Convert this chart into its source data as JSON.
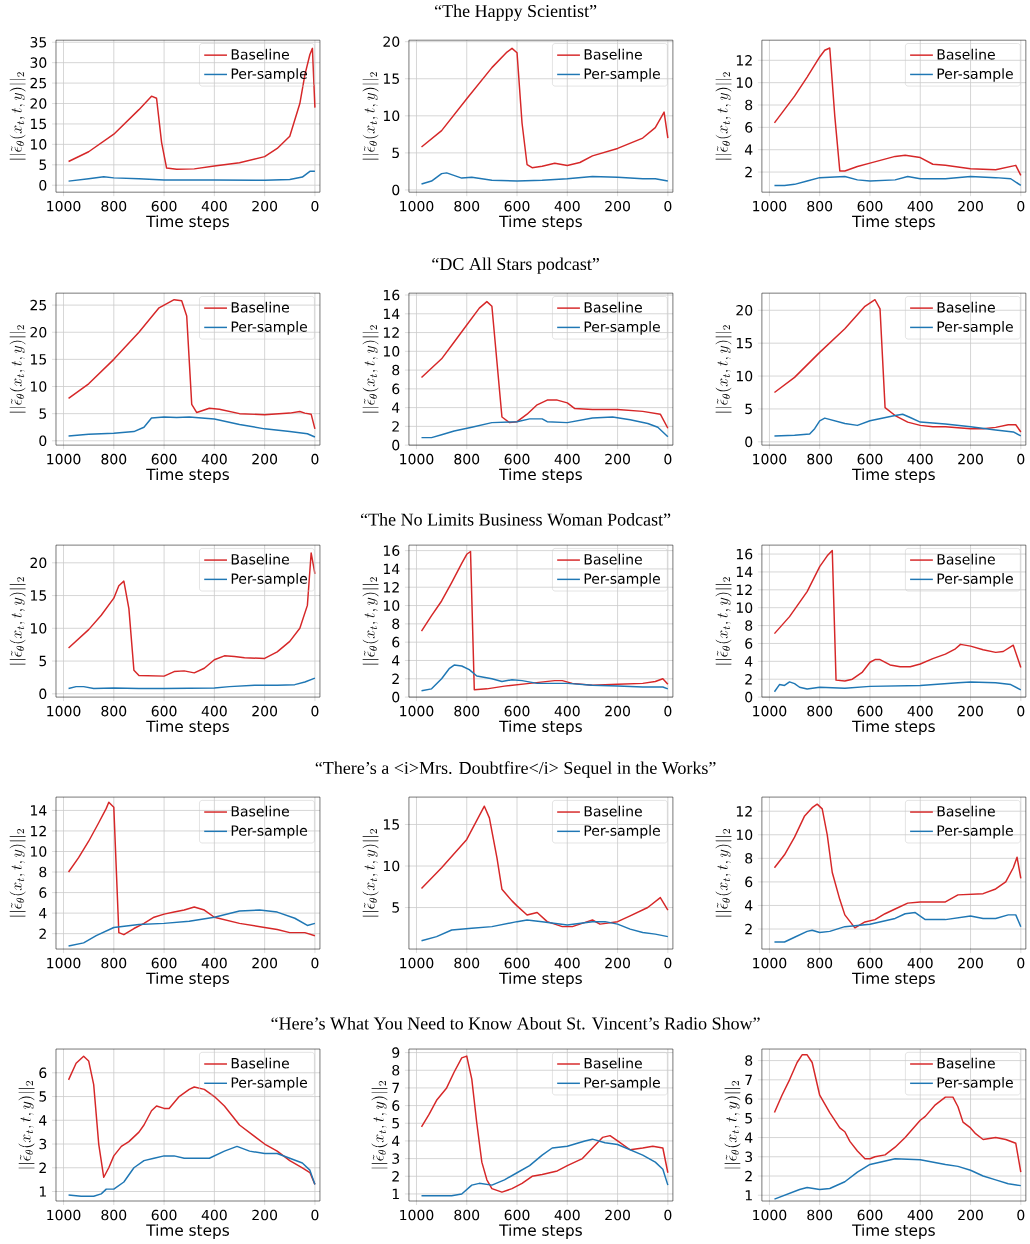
{
  "chart_data": [
    {
      "type": "line",
      "xlabel": "Time steps",
      "ylabel": "||\\tilde{\\epsilon}_\\theta(x_t, t, y)||_2",
      "xlim": [
        1030,
        -20
      ],
      "xticks": [
        1000,
        800,
        600,
        400,
        200,
        0
      ],
      "ylim": [
        -1.7,
        35.5
      ],
      "yticks": [
        0,
        5,
        10,
        15,
        20,
        25,
        30,
        35
      ],
      "grid": true,
      "legend": "top right",
      "series": [
        {
          "name": "Baseline",
          "color": "#d62728",
          "x": [
            980,
            900,
            800,
            700,
            650,
            630,
            610,
            590,
            550,
            480,
            400,
            300,
            200,
            150,
            100,
            60,
            40,
            20,
            10,
            0
          ],
          "values": [
            5.8,
            8.2,
            12.5,
            18.5,
            21.8,
            21.3,
            10.5,
            4.2,
            3.9,
            4.0,
            4.7,
            5.5,
            7.0,
            9,
            12,
            20,
            27,
            32,
            33.5,
            19
          ]
        },
        {
          "name": "Per-sample",
          "color": "#1f77b4",
          "x": [
            980,
            900,
            840,
            800,
            700,
            600,
            400,
            200,
            100,
            50,
            20,
            0
          ],
          "values": [
            1,
            1.6,
            2.1,
            1.8,
            1.6,
            1.3,
            1.3,
            1.2,
            1.4,
            2,
            3.4,
            3.4
          ]
        }
      ]
    },
    {
      "type": "line",
      "title": "“The Happy Scientist”",
      "xlabel": "Time steps",
      "ylabel": "||\\tilde{\\epsilon}_\\theta(x_t, t, y)||_2",
      "xlim": [
        1030,
        -20
      ],
      "xticks": [
        1000,
        800,
        600,
        400,
        200,
        0
      ],
      "ylim": [
        -0.3,
        20.2
      ],
      "yticks": [
        0,
        5,
        10,
        15,
        20
      ],
      "grid": true,
      "legend": "top right",
      "series": [
        {
          "name": "Baseline",
          "color": "#d62728",
          "x": [
            980,
            900,
            800,
            700,
            640,
            620,
            600,
            580,
            560,
            540,
            500,
            450,
            400,
            350,
            300,
            200,
            100,
            50,
            15,
            0
          ],
          "values": [
            5.8,
            8,
            12.3,
            16.5,
            18.6,
            19.1,
            18.5,
            9,
            3.4,
            3,
            3.2,
            3.6,
            3.3,
            3.7,
            4.6,
            5.6,
            7,
            8.4,
            10.5,
            7
          ]
        },
        {
          "name": "Per-sample",
          "color": "#1f77b4",
          "x": [
            980,
            940,
            900,
            880,
            820,
            780,
            700,
            600,
            500,
            400,
            300,
            200,
            100,
            50,
            0
          ],
          "values": [
            0.8,
            1.2,
            2.2,
            2.3,
            1.6,
            1.7,
            1.3,
            1.2,
            1.3,
            1.5,
            1.8,
            1.7,
            1.5,
            1.5,
            1.2
          ]
        }
      ]
    },
    {
      "type": "line",
      "xlabel": "Time steps",
      "ylabel": "||\\tilde{\\epsilon}_\\theta(x_t, t, y)||_2",
      "xlim": [
        1030,
        -20
      ],
      "xticks": [
        1000,
        800,
        600,
        400,
        200,
        0
      ],
      "ylim": [
        0.2,
        13.8
      ],
      "yticks": [
        2,
        4,
        6,
        8,
        10,
        12
      ],
      "grid": true,
      "legend": "top right",
      "series": [
        {
          "name": "Baseline",
          "color": "#d62728",
          "x": [
            980,
            950,
            900,
            850,
            800,
            780,
            760,
            740,
            720,
            700,
            650,
            600,
            500,
            460,
            400,
            350,
            300,
            200,
            100,
            20,
            0
          ],
          "values": [
            6.4,
            7.3,
            8.8,
            10.5,
            12.3,
            12.9,
            13.1,
            7,
            2.1,
            2.1,
            2.5,
            2.8,
            3.4,
            3.5,
            3.3,
            2.7,
            2.6,
            2.3,
            2.2,
            2.6,
            1.7
          ]
        },
        {
          "name": "Per-sample",
          "color": "#1f77b4",
          "x": [
            980,
            940,
            900,
            850,
            800,
            700,
            650,
            600,
            500,
            450,
            400,
            300,
            200,
            100,
            40,
            0
          ],
          "values": [
            0.8,
            0.8,
            0.9,
            1.2,
            1.5,
            1.6,
            1.3,
            1.2,
            1.3,
            1.6,
            1.4,
            1.4,
            1.6,
            1.5,
            1.4,
            0.8
          ]
        }
      ]
    },
    {
      "type": "line",
      "xlabel": "Time steps",
      "ylabel": "||\\tilde{\\epsilon}_\\theta(x_t, t, y)||_2",
      "xlim": [
        1030,
        -20
      ],
      "xticks": [
        1000,
        800,
        600,
        400,
        200,
        0
      ],
      "ylim": [
        -0.8,
        27.2
      ],
      "yticks": [
        0,
        5,
        10,
        15,
        20,
        25
      ],
      "grid": true,
      "legend": "top right",
      "series": [
        {
          "name": "Baseline",
          "color": "#d62728",
          "x": [
            980,
            900,
            800,
            700,
            620,
            560,
            530,
            510,
            490,
            470,
            420,
            380,
            300,
            200,
            100,
            60,
            40,
            15,
            0
          ],
          "values": [
            7.8,
            10.5,
            15,
            20,
            24.5,
            26,
            25.8,
            23,
            6.7,
            5.2,
            6,
            5.8,
            5,
            4.8,
            5.1,
            5.4,
            5.1,
            4.9,
            2.2
          ]
        },
        {
          "name": "Per-sample",
          "color": "#1f77b4",
          "x": [
            980,
            900,
            800,
            720,
            680,
            650,
            600,
            550,
            500,
            400,
            300,
            200,
            100,
            30,
            0
          ],
          "values": [
            0.9,
            1.2,
            1.4,
            1.7,
            2.5,
            4.2,
            4.4,
            4.3,
            4.4,
            4,
            3,
            2.2,
            1.7,
            1.3,
            0.7
          ]
        }
      ]
    },
    {
      "type": "line",
      "title": "“DC All Stars podcast”",
      "xlabel": "Time steps",
      "ylabel": "||\\tilde{\\epsilon}_\\theta(x_t, t, y)||_2",
      "xlim": [
        1030,
        -20
      ],
      "xticks": [
        1000,
        800,
        600,
        400,
        200,
        0
      ],
      "ylim": [
        0,
        16.2
      ],
      "yticks": [
        0,
        2,
        4,
        6,
        8,
        10,
        12,
        14,
        16
      ],
      "grid": true,
      "legend": "top right",
      "series": [
        {
          "name": "Baseline",
          "color": "#d62728",
          "x": [
            980,
            900,
            850,
            800,
            750,
            720,
            700,
            660,
            630,
            600,
            560,
            520,
            480,
            440,
            400,
            370,
            300,
            200,
            100,
            30,
            0
          ],
          "values": [
            7.2,
            9.2,
            11,
            12.8,
            14.6,
            15.3,
            14.8,
            3,
            2.4,
            2.5,
            3.3,
            4.3,
            4.8,
            4.8,
            4.5,
            3.9,
            3.8,
            3.8,
            3.6,
            3.3,
            1.8
          ]
        },
        {
          "name": "Per-sample",
          "color": "#1f77b4",
          "x": [
            980,
            940,
            900,
            850,
            780,
            700,
            600,
            550,
            500,
            480,
            400,
            300,
            220,
            150,
            80,
            40,
            0
          ],
          "values": [
            0.8,
            0.8,
            1.1,
            1.5,
            1.9,
            2.4,
            2.5,
            2.8,
            2.8,
            2.5,
            2.4,
            2.9,
            3,
            2.7,
            2.3,
            1.9,
            0.9
          ]
        }
      ]
    },
    {
      "type": "line",
      "xlabel": "Time steps",
      "ylabel": "||\\tilde{\\epsilon}_\\theta(x_t, t, y)||_2",
      "xlim": [
        1030,
        -20
      ],
      "xticks": [
        1000,
        800,
        600,
        400,
        200,
        0
      ],
      "ylim": [
        -0.5,
        22.6
      ],
      "yticks": [
        0,
        5,
        10,
        15,
        20
      ],
      "grid": true,
      "legend": "top right",
      "series": [
        {
          "name": "Baseline",
          "color": "#d62728",
          "x": [
            980,
            900,
            800,
            700,
            620,
            580,
            560,
            540,
            500,
            450,
            400,
            350,
            300,
            200,
            150,
            100,
            50,
            20,
            0
          ],
          "values": [
            7.5,
            9.8,
            13.6,
            17.2,
            20.6,
            21.6,
            20.2,
            5.2,
            4,
            3,
            2.5,
            2.3,
            2.3,
            2,
            2,
            2.2,
            2.6,
            2.6,
            1.5
          ]
        },
        {
          "name": "Per-sample",
          "color": "#1f77b4",
          "x": [
            980,
            900,
            840,
            820,
            800,
            780,
            700,
            650,
            600,
            500,
            470,
            440,
            400,
            300,
            200,
            100,
            30,
            0
          ],
          "values": [
            0.9,
            1,
            1.2,
            2,
            3.2,
            3.6,
            2.8,
            2.5,
            3.2,
            4,
            4.2,
            3.7,
            3,
            2.7,
            2.3,
            1.8,
            1.5,
            0.9
          ]
        }
      ]
    },
    {
      "type": "line",
      "xlabel": "Time steps",
      "ylabel": "||\\tilde{\\epsilon}_\\theta(x_t, t, y)||_2",
      "xlim": [
        1030,
        -20
      ],
      "xticks": [
        1000,
        800,
        600,
        400,
        200,
        0
      ],
      "ylim": [
        -0.5,
        22.7
      ],
      "yticks": [
        0,
        5,
        10,
        15,
        20
      ],
      "grid": true,
      "legend": "top right",
      "series": [
        {
          "name": "Baseline",
          "color": "#d62728",
          "x": [
            980,
            900,
            850,
            800,
            780,
            760,
            740,
            720,
            700,
            600,
            560,
            520,
            480,
            440,
            400,
            360,
            320,
            280,
            200,
            150,
            100,
            60,
            30,
            15,
            0
          ],
          "values": [
            7,
            9.8,
            12,
            14.6,
            16.5,
            17.2,
            13,
            3.6,
            2.8,
            2.7,
            3.4,
            3.5,
            3.2,
            3.9,
            5.2,
            5.8,
            5.7,
            5.5,
            5.4,
            6.4,
            8,
            10,
            13.5,
            21.5,
            18.3
          ]
        },
        {
          "name": "Per-sample",
          "color": "#1f77b4",
          "x": [
            980,
            950,
            920,
            880,
            800,
            700,
            600,
            400,
            340,
            240,
            150,
            80,
            40,
            0
          ],
          "values": [
            0.8,
            1.1,
            1.1,
            0.8,
            0.9,
            0.8,
            0.8,
            0.9,
            1.1,
            1.3,
            1.3,
            1.4,
            1.8,
            2.4
          ]
        }
      ]
    },
    {
      "type": "line",
      "title": "“The No Limits Business Woman Podcast”",
      "xlabel": "Time steps",
      "ylabel": "||\\tilde{\\epsilon}_\\theta(x_t, t, y)||_2",
      "xlim": [
        1030,
        -20
      ],
      "xticks": [
        1000,
        800,
        600,
        400,
        200,
        0
      ],
      "ylim": [
        0,
        16.6
      ],
      "yticks": [
        0,
        2,
        4,
        6,
        8,
        10,
        12,
        14,
        16
      ],
      "grid": true,
      "legend": "top right",
      "series": [
        {
          "name": "Baseline",
          "color": "#d62728",
          "x": [
            980,
            940,
            900,
            860,
            820,
            800,
            785,
            770,
            720,
            650,
            550,
            450,
            420,
            380,
            300,
            200,
            100,
            50,
            20,
            0
          ],
          "values": [
            7.2,
            8.9,
            10.5,
            12.5,
            14.6,
            15.6,
            15.9,
            0.8,
            0.9,
            1.2,
            1.5,
            1.8,
            1.8,
            1.5,
            1.3,
            1.4,
            1.5,
            1.7,
            2,
            1.4
          ]
        },
        {
          "name": "Per-sample",
          "color": "#1f77b4",
          "x": [
            980,
            940,
            900,
            870,
            850,
            820,
            790,
            760,
            700,
            660,
            620,
            580,
            520,
            400,
            300,
            200,
            100,
            20,
            0
          ],
          "values": [
            0.7,
            0.9,
            2,
            3.1,
            3.5,
            3.4,
            3,
            2.3,
            2,
            1.7,
            1.9,
            1.8,
            1.5,
            1.5,
            1.3,
            1.2,
            1.1,
            1.1,
            0.9
          ]
        }
      ]
    },
    {
      "type": "line",
      "xlabel": "Time steps",
      "ylabel": "||\\tilde{\\epsilon}_\\theta(x_t, t, y)||_2",
      "xlim": [
        1030,
        -20
      ],
      "xticks": [
        1000,
        800,
        600,
        400,
        200,
        0
      ],
      "ylim": [
        0,
        17
      ],
      "yticks": [
        0,
        2,
        4,
        6,
        8,
        10,
        12,
        14,
        16
      ],
      "grid": true,
      "legend": "top right",
      "series": [
        {
          "name": "Baseline",
          "color": "#d62728",
          "x": [
            980,
            920,
            850,
            800,
            770,
            750,
            735,
            700,
            670,
            630,
            600,
            580,
            560,
            520,
            480,
            440,
            400,
            350,
            300,
            260,
            240,
            200,
            150,
            100,
            70,
            30,
            0
          ],
          "values": [
            7.1,
            9,
            11.8,
            14.6,
            15.8,
            16.4,
            1.9,
            1.8,
            2,
            2.8,
            3.9,
            4.2,
            4.2,
            3.6,
            3.4,
            3.4,
            3.7,
            4.3,
            4.8,
            5.4,
            5.9,
            5.7,
            5.3,
            5,
            5.1,
            5.8,
            3.3
          ]
        },
        {
          "name": "Per-sample",
          "color": "#1f77b4",
          "x": [
            980,
            960,
            940,
            920,
            900,
            880,
            850,
            800,
            700,
            600,
            400,
            250,
            200,
            100,
            40,
            0
          ],
          "values": [
            0.6,
            1.4,
            1.3,
            1.7,
            1.5,
            1.1,
            0.9,
            1.1,
            1.0,
            1.2,
            1.3,
            1.6,
            1.7,
            1.6,
            1.4,
            0.8
          ]
        }
      ]
    },
    {
      "type": "line",
      "xlabel": "Time steps",
      "ylabel": "||\\tilde{\\epsilon}_\\theta(x_t, t, y)||_2",
      "xlim": [
        1030,
        -20
      ],
      "xticks": [
        1000,
        800,
        600,
        400,
        200,
        0
      ],
      "ylim": [
        0.5,
        15.3
      ],
      "yticks": [
        2,
        4,
        6,
        8,
        10,
        12,
        14
      ],
      "grid": true,
      "legend": "top right",
      "series": [
        {
          "name": "Baseline",
          "color": "#d62728",
          "x": [
            980,
            940,
            900,
            860,
            830,
            820,
            800,
            780,
            760,
            720,
            680,
            640,
            600,
            560,
            520,
            480,
            440,
            400,
            300,
            200,
            150,
            100,
            40,
            0
          ],
          "values": [
            8,
            9.4,
            11,
            12.8,
            14.2,
            14.8,
            14.3,
            2.1,
            1.9,
            2.5,
            3,
            3.6,
            3.9,
            4.1,
            4.3,
            4.6,
            4.3,
            3.6,
            3.0,
            2.6,
            2.4,
            2.1,
            2.1,
            1.8
          ]
        },
        {
          "name": "Per-sample",
          "color": "#1f77b4",
          "x": [
            980,
            920,
            870,
            800,
            700,
            600,
            500,
            400,
            300,
            220,
            150,
            80,
            30,
            0
          ],
          "values": [
            0.8,
            1.1,
            1.8,
            2.6,
            2.9,
            3,
            3.2,
            3.6,
            4.2,
            4.3,
            4.1,
            3.5,
            2.8,
            3
          ]
        }
      ]
    },
    {
      "type": "line",
      "title": "“There’s a <i>Mrs. Doubtfire</i> Sequel in the Works”",
      "xlabel": "Time steps",
      "ylabel": "||\\tilde{\\epsilon}_\\theta(x_t, t, y)||_2",
      "xlim": [
        1030,
        -20
      ],
      "xticks": [
        1000,
        800,
        600,
        400,
        200,
        0
      ],
      "ylim": [
        0,
        18.3
      ],
      "yticks": [
        5,
        10,
        15
      ],
      "grid": true,
      "legend": "top right",
      "series": [
        {
          "name": "Baseline",
          "color": "#d62728",
          "x": [
            980,
            900,
            800,
            760,
            730,
            710,
            680,
            660,
            620,
            600,
            560,
            520,
            480,
            420,
            380,
            320,
            300,
            270,
            200,
            150,
            80,
            30,
            0
          ],
          "values": [
            7.3,
            9.8,
            13.2,
            15.5,
            17.2,
            15.8,
            11,
            7.2,
            5.8,
            5.2,
            4.1,
            4.4,
            3.3,
            2.7,
            2.7,
            3.3,
            3.5,
            3,
            3.3,
            4,
            5,
            6.2,
            4.7
          ]
        },
        {
          "name": "Per-sample",
          "color": "#1f77b4",
          "x": [
            980,
            920,
            860,
            780,
            700,
            600,
            560,
            500,
            400,
            300,
            250,
            200,
            150,
            100,
            50,
            0
          ],
          "values": [
            1,
            1.5,
            2.3,
            2.5,
            2.7,
            3.3,
            3.5,
            3.3,
            2.9,
            3.3,
            3.3,
            3,
            2.4,
            2,
            1.8,
            1.5
          ]
        }
      ]
    },
    {
      "type": "line",
      "xlabel": "Time steps",
      "ylabel": "||\\tilde{\\epsilon}_\\theta(x_t, t, y)||_2",
      "xlim": [
        1030,
        -20
      ],
      "xticks": [
        1000,
        800,
        600,
        400,
        200,
        0
      ],
      "ylim": [
        0.3,
        13.2
      ],
      "yticks": [
        2,
        4,
        6,
        8,
        10,
        12
      ],
      "grid": true,
      "legend": "top right",
      "series": [
        {
          "name": "Baseline",
          "color": "#d62728",
          "x": [
            980,
            940,
            900,
            860,
            830,
            810,
            790,
            770,
            750,
            720,
            700,
            660,
            620,
            580,
            540,
            500,
            450,
            400,
            300,
            250,
            150,
            100,
            60,
            30,
            15,
            0
          ],
          "values": [
            7.2,
            8.3,
            9.8,
            11.6,
            12.3,
            12.6,
            12.2,
            10,
            6.8,
            4.5,
            3.2,
            2.1,
            2.6,
            2.8,
            3.3,
            3.7,
            4.2,
            4.3,
            4.3,
            4.9,
            5,
            5.4,
            6,
            7.2,
            8.1,
            6.3
          ]
        },
        {
          "name": "Per-sample",
          "color": "#1f77b4",
          "x": [
            980,
            940,
            900,
            850,
            830,
            800,
            760,
            700,
            600,
            500,
            460,
            420,
            380,
            300,
            200,
            150,
            100,
            50,
            20,
            0
          ],
          "values": [
            0.9,
            0.9,
            1.3,
            1.8,
            1.9,
            1.7,
            1.8,
            2.2,
            2.4,
            2.9,
            3.3,
            3.4,
            2.8,
            2.8,
            3.1,
            2.9,
            2.9,
            3.2,
            3.2,
            2.2
          ]
        }
      ]
    },
    {
      "type": "line",
      "xlabel": "Time steps",
      "ylabel": "||\\tilde{\\epsilon}_\\theta(x_t, t, y)||_2",
      "xlim": [
        1030,
        -20
      ],
      "xticks": [
        1000,
        800,
        600,
        400,
        200,
        0
      ],
      "ylim": [
        0.6,
        7
      ],
      "yticks": [
        1,
        2,
        3,
        4,
        5,
        6
      ],
      "grid": true,
      "legend": "top right",
      "series": [
        {
          "name": "Baseline",
          "color": "#d62728",
          "x": [
            980,
            950,
            920,
            900,
            880,
            860,
            840,
            820,
            800,
            770,
            740,
            700,
            680,
            650,
            630,
            600,
            580,
            540,
            500,
            480,
            440,
            400,
            360,
            330,
            300,
            250,
            200,
            150,
            100,
            50,
            20,
            0
          ],
          "values": [
            5.7,
            6.4,
            6.7,
            6.5,
            5.5,
            3,
            1.6,
            2,
            2.5,
            2.9,
            3.1,
            3.5,
            3.8,
            4.4,
            4.6,
            4.5,
            4.5,
            5.0,
            5.3,
            5.4,
            5.3,
            5.0,
            4.6,
            4.2,
            3.8,
            3.4,
            3,
            2.7,
            2.3,
            2,
            1.8,
            1.3
          ]
        },
        {
          "name": "Per-sample",
          "color": "#1f77b4",
          "x": [
            980,
            930,
            880,
            850,
            830,
            800,
            760,
            720,
            680,
            640,
            600,
            560,
            520,
            480,
            420,
            360,
            310,
            260,
            200,
            150,
            100,
            50,
            20,
            0
          ],
          "values": [
            0.85,
            0.8,
            0.8,
            0.9,
            1.1,
            1.1,
            1.4,
            2,
            2.3,
            2.4,
            2.5,
            2.5,
            2.4,
            2.4,
            2.4,
            2.7,
            2.9,
            2.7,
            2.6,
            2.6,
            2.4,
            2.2,
            1.9,
            1.3
          ]
        }
      ]
    },
    {
      "type": "line",
      "title": "“Here’s What You Need to Know About St. Vincent’s Radio Show”",
      "xlabel": "Time steps",
      "ylabel": "||\\tilde{\\epsilon}_\\theta(x_t, t, y)||_2",
      "xlim": [
        1030,
        -20
      ],
      "xticks": [
        1000,
        800,
        600,
        400,
        200,
        0
      ],
      "ylim": [
        0.6,
        9.2
      ],
      "yticks": [
        1,
        2,
        3,
        4,
        5,
        6,
        7,
        8,
        9
      ],
      "grid": true,
      "legend": "top right",
      "series": [
        {
          "name": "Baseline",
          "color": "#d62728",
          "x": [
            980,
            950,
            920,
            880,
            850,
            820,
            800,
            780,
            760,
            740,
            720,
            700,
            660,
            620,
            580,
            540,
            500,
            440,
            400,
            340,
            300,
            260,
            230,
            200,
            150,
            100,
            60,
            20,
            0
          ],
          "values": [
            4.8,
            5.5,
            6.3,
            7,
            7.9,
            8.7,
            8.8,
            7.5,
            5,
            2.8,
            1.8,
            1.3,
            1.1,
            1.3,
            1.6,
            2,
            2.1,
            2.3,
            2.6,
            3.0,
            3.6,
            4.2,
            4.3,
            4,
            3.5,
            3.6,
            3.7,
            3.6,
            2.2
          ]
        },
        {
          "name": "Per-sample",
          "color": "#1f77b4",
          "x": [
            980,
            900,
            860,
            820,
            780,
            750,
            700,
            650,
            600,
            550,
            500,
            460,
            400,
            330,
            300,
            250,
            200,
            150,
            100,
            50,
            20,
            0
          ],
          "values": [
            0.9,
            0.9,
            0.9,
            1.0,
            1.5,
            1.6,
            1.5,
            1.8,
            2.2,
            2.6,
            3.2,
            3.6,
            3.7,
            4.0,
            4.1,
            3.9,
            3.8,
            3.5,
            3.2,
            2.8,
            2.4,
            1.5
          ]
        }
      ]
    },
    {
      "type": "line",
      "xlabel": "Time steps",
      "ylabel": "||\\tilde{\\epsilon}_\\theta(x_t, t, y)||_2",
      "xlim": [
        1030,
        -20
      ],
      "xticks": [
        1000,
        800,
        600,
        400,
        200,
        0
      ],
      "ylim": [
        0.7,
        8.6
      ],
      "yticks": [
        1,
        2,
        3,
        4,
        5,
        6,
        7,
        8
      ],
      "grid": true,
      "legend": "top right",
      "series": [
        {
          "name": "Baseline",
          "color": "#d62728",
          "x": [
            980,
            950,
            920,
            890,
            870,
            850,
            830,
            800,
            760,
            720,
            700,
            680,
            650,
            620,
            600,
            580,
            540,
            500,
            460,
            420,
            400,
            380,
            340,
            300,
            270,
            250,
            230,
            200,
            180,
            150,
            100,
            60,
            20,
            0
          ],
          "values": [
            5.3,
            6.2,
            7,
            7.9,
            8.3,
            8.3,
            7.9,
            6.2,
            5.3,
            4.5,
            4.3,
            3.8,
            3.3,
            2.9,
            2.9,
            3.0,
            3.1,
            3.5,
            4,
            4.6,
            4.9,
            5.1,
            5.7,
            6.1,
            6.1,
            5.6,
            4.8,
            4.5,
            4.2,
            3.9,
            4,
            3.9,
            3.7,
            2.2
          ]
        },
        {
          "name": "Per-sample",
          "color": "#1f77b4",
          "x": [
            980,
            920,
            880,
            850,
            800,
            760,
            700,
            650,
            600,
            550,
            500,
            400,
            300,
            250,
            200,
            150,
            100,
            50,
            0
          ],
          "values": [
            0.8,
            1.1,
            1.3,
            1.4,
            1.3,
            1.35,
            1.7,
            2.2,
            2.6,
            2.75,
            2.9,
            2.85,
            2.6,
            2.5,
            2.3,
            2,
            1.8,
            1.6,
            1.5
          ]
        }
      ]
    }
  ]
}
